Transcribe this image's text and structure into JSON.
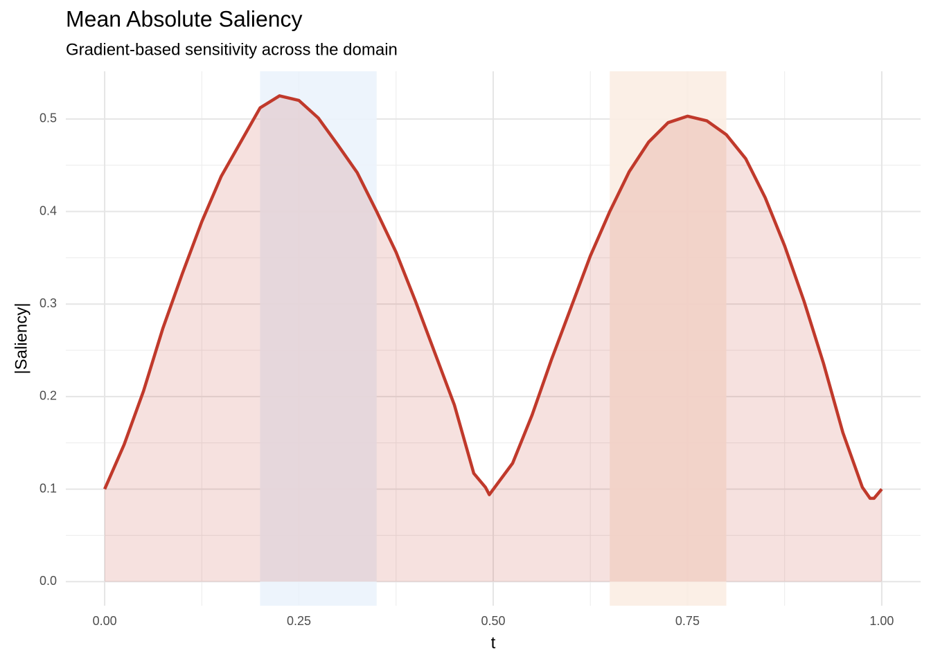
{
  "chart_data": {
    "type": "area_line",
    "title": "Mean Absolute Saliency",
    "subtitle": "Gradient-based sensitivity across the domain",
    "xlabel": "t",
    "ylabel": "|Saliency|",
    "x": [
      0,
      0.025,
      0.05,
      0.075,
      0.1,
      0.125,
      0.15,
      0.175,
      0.2,
      0.225,
      0.25,
      0.275,
      0.3,
      0.325,
      0.35,
      0.375,
      0.4,
      0.425,
      0.45,
      0.475,
      0.49,
      0.495,
      0.525,
      0.55,
      0.575,
      0.6,
      0.625,
      0.65,
      0.675,
      0.7,
      0.725,
      0.75,
      0.775,
      0.8,
      0.825,
      0.85,
      0.875,
      0.9,
      0.925,
      0.95,
      0.975,
      0.985,
      0.99,
      1.0
    ],
    "series": [
      {
        "name": "|Saliency|",
        "color": "#c0392b",
        "values": [
          0.1,
          0.148,
          0.206,
          0.274,
          0.333,
          0.389,
          0.438,
          0.475,
          0.512,
          0.525,
          0.52,
          0.501,
          0.472,
          0.442,
          0.4,
          0.356,
          0.303,
          0.247,
          0.191,
          0.117,
          0.102,
          0.094,
          0.128,
          0.18,
          0.24,
          0.296,
          0.352,
          0.4,
          0.443,
          0.475,
          0.496,
          0.503,
          0.498,
          0.483,
          0.457,
          0.415,
          0.363,
          0.303,
          0.236,
          0.161,
          0.102,
          0.09,
          0.09,
          0.1
        ]
      }
    ],
    "shaded_regions": [
      {
        "xmin": 0.2,
        "xmax": 0.35,
        "color": "#ebf3fc"
      },
      {
        "xmin": 0.65,
        "xmax": 0.8,
        "color": "#fbede3"
      }
    ],
    "xlim": [
      -0.05,
      1.05
    ],
    "ylim": [
      -0.026,
      0.5515
    ],
    "xticks": [
      {
        "value": 0,
        "label": "0.00"
      },
      {
        "value": 0.25,
        "label": "0.25"
      },
      {
        "value": 0.5,
        "label": "0.50"
      },
      {
        "value": 0.75,
        "label": "0.75"
      },
      {
        "value": 1,
        "label": "1.00"
      }
    ],
    "yticks": [
      {
        "value": 0,
        "label": "0.0"
      },
      0.1,
      0.2,
      0.3,
      0.4,
      0.5
    ],
    "xminor": [
      0.125,
      0.375,
      0.625,
      0.875
    ],
    "yminor": [
      0.05,
      0.15,
      0.25,
      0.35,
      0.45
    ],
    "grid": true
  }
}
